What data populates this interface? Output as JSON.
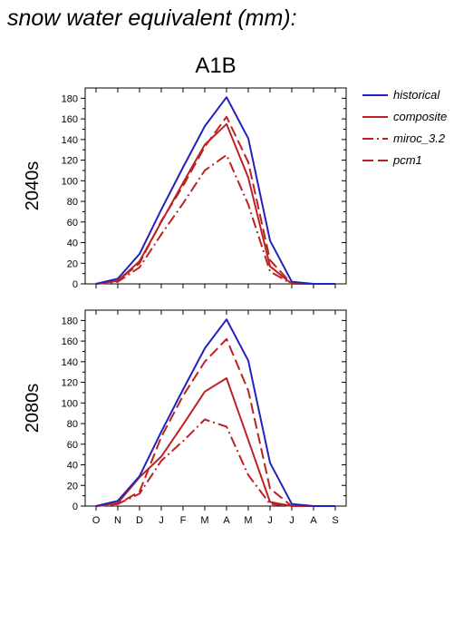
{
  "title": "snow water equivalent (mm):",
  "scenario": "A1B",
  "colors": {
    "historical": "#2222bb",
    "model": "#bb2222"
  },
  "legend": [
    {
      "name": "historical",
      "color": "#2222bb",
      "dash": "solid"
    },
    {
      "name": "composite",
      "color": "#bb2222",
      "dash": "solid"
    },
    {
      "name": "miroc_3.2",
      "color": "#bb2222",
      "dash": "dashdot"
    },
    {
      "name": "pcm1",
      "color": "#bb2222",
      "dash": "dashed"
    }
  ],
  "chart_data": [
    {
      "type": "line",
      "row_label": "2040s",
      "categories": [
        "O",
        "N",
        "D",
        "J",
        "F",
        "M",
        "A",
        "M",
        "J",
        "J",
        "A",
        "S"
      ],
      "ylim": [
        0,
        190
      ],
      "yticks": [
        0,
        20,
        40,
        60,
        80,
        100,
        120,
        140,
        160,
        180
      ],
      "series": [
        {
          "name": "historical",
          "values": [
            0,
            5,
            29,
            72,
            113,
            153,
            181,
            141,
            42,
            2,
            0,
            0
          ]
        },
        {
          "name": "composite",
          "values": [
            0,
            3,
            22,
            60,
            98,
            135,
            155,
            103,
            17,
            0,
            0,
            0
          ]
        },
        {
          "name": "miroc_3.2",
          "values": [
            0,
            2,
            16,
            48,
            78,
            110,
            125,
            77,
            12,
            0,
            0,
            0
          ]
        },
        {
          "name": "pcm1",
          "values": [
            0,
            3,
            20,
            61,
            95,
            133,
            162,
            118,
            23,
            0,
            0,
            0
          ]
        }
      ]
    },
    {
      "type": "line",
      "row_label": "2080s",
      "categories": [
        "O",
        "N",
        "D",
        "J",
        "F",
        "M",
        "A",
        "M",
        "J",
        "J",
        "A",
        "S"
      ],
      "ylim": [
        0,
        190
      ],
      "yticks": [
        0,
        20,
        40,
        60,
        80,
        100,
        120,
        140,
        160,
        180
      ],
      "series": [
        {
          "name": "historical",
          "values": [
            0,
            5,
            29,
            72,
            113,
            153,
            181,
            141,
            42,
            2,
            0,
            0
          ]
        },
        {
          "name": "composite",
          "values": [
            0,
            3,
            28,
            48,
            79,
            111,
            124,
            64,
            4,
            0,
            0,
            0
          ]
        },
        {
          "name": "miroc_3.2",
          "values": [
            0,
            2,
            12,
            44,
            63,
            84,
            77,
            30,
            2,
            0,
            0,
            0
          ]
        },
        {
          "name": "pcm1",
          "values": [
            0,
            2,
            14,
            67,
            107,
            140,
            162,
            112,
            17,
            0,
            0,
            0
          ]
        }
      ]
    }
  ]
}
